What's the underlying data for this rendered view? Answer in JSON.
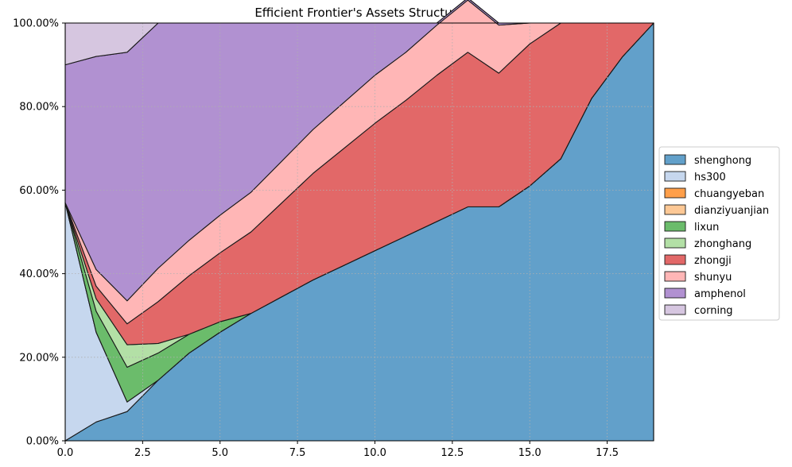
{
  "chart_data": {
    "type": "area",
    "stacked": true,
    "title": "Efficient Frontier's Assets Structure",
    "xlabel": "",
    "ylabel": "",
    "xlim": [
      0,
      19
    ],
    "ylim": [
      0,
      100
    ],
    "x_ticks": [
      0,
      2.5,
      5,
      7.5,
      10,
      12.5,
      15,
      17.5
    ],
    "x_tick_labels": [
      "0.0",
      "2.5",
      "5.0",
      "7.5",
      "10.0",
      "12.5",
      "15.0",
      "17.5"
    ],
    "y_ticks": [
      0,
      20,
      40,
      60,
      80,
      100
    ],
    "y_tick_labels": [
      "0.00%",
      "20.00%",
      "40.00%",
      "60.00%",
      "80.00%",
      "100.00%"
    ],
    "grid": true,
    "legend_position": "right-outside",
    "x": [
      0,
      1,
      2,
      3,
      4,
      5,
      6,
      7,
      8,
      9,
      10,
      11,
      12,
      13,
      14,
      15,
      16,
      17,
      18,
      19
    ],
    "series": [
      {
        "name": "shenghong",
        "color": "#62a0ca",
        "values": [
          0,
          4.5,
          7,
          14.5,
          21,
          26,
          30.5,
          34.5,
          38.5,
          42,
          45.5,
          49,
          52.5,
          56,
          56,
          61,
          67.5,
          82,
          92,
          100
        ]
      },
      {
        "name": "hs300",
        "color": "#c6d7ee",
        "values": [
          57,
          21.5,
          2.3,
          0,
          0,
          0,
          0,
          0,
          0,
          0,
          0,
          0,
          0,
          0,
          0,
          0,
          0,
          0,
          0,
          0
        ]
      },
      {
        "name": "chuangyeban",
        "color": "#ff9f4a",
        "values": [
          0,
          0,
          0,
          0,
          0,
          0,
          0,
          0,
          0,
          0,
          0,
          0,
          0,
          0,
          0,
          0,
          0,
          0,
          0,
          0
        ]
      },
      {
        "name": "dianziyuanjian",
        "color": "#fdc895",
        "values": [
          0,
          0,
          0,
          0,
          0,
          0,
          0,
          0,
          0,
          0,
          0,
          0,
          0,
          0,
          0,
          0,
          0,
          0,
          0,
          0
        ]
      },
      {
        "name": "lixun",
        "color": "#6bbc6b",
        "values": [
          0,
          5,
          8.3,
          6.5,
          4.5,
          2.5,
          0,
          0,
          0,
          0,
          0,
          0,
          0,
          0,
          0,
          0,
          0,
          0,
          0,
          0
        ]
      },
      {
        "name": "zhonghang",
        "color": "#b3e0a6",
        "values": [
          0,
          3,
          5.4,
          2.3,
          0,
          0,
          0,
          0,
          0,
          0,
          0,
          0,
          0,
          0,
          0,
          0,
          0,
          0,
          0,
          0
        ]
      },
      {
        "name": "zhongji",
        "color": "#e26868",
        "values": [
          0,
          3,
          5,
          10,
          14,
          16.5,
          19.5,
          22.5,
          25.5,
          28,
          30.5,
          32.5,
          35,
          37,
          32,
          34,
          32.5,
          18,
          8,
          0
        ]
      },
      {
        "name": "shunyu",
        "color": "#ffb6b6",
        "values": [
          0,
          4,
          5.5,
          8,
          8.5,
          9,
          9.5,
          10,
          10.5,
          11,
          11.5,
          11.5,
          12,
          12.5,
          11.5,
          5,
          0,
          0,
          0,
          0
        ]
      },
      {
        "name": "amphenol",
        "color": "#b191d1",
        "values": [
          33,
          51,
          59.5,
          58.7,
          52,
          46,
          40.5,
          33,
          25.5,
          19,
          12.5,
          7,
          0.5,
          0.5,
          0.5,
          0,
          0,
          0,
          0,
          0
        ]
      },
      {
        "name": "corning",
        "color": "#d6c6e0",
        "values": [
          10,
          8,
          7,
          0,
          0,
          0,
          0,
          0,
          0,
          0,
          0,
          0,
          0,
          0,
          0,
          0,
          0,
          0,
          0,
          0
        ]
      }
    ]
  }
}
